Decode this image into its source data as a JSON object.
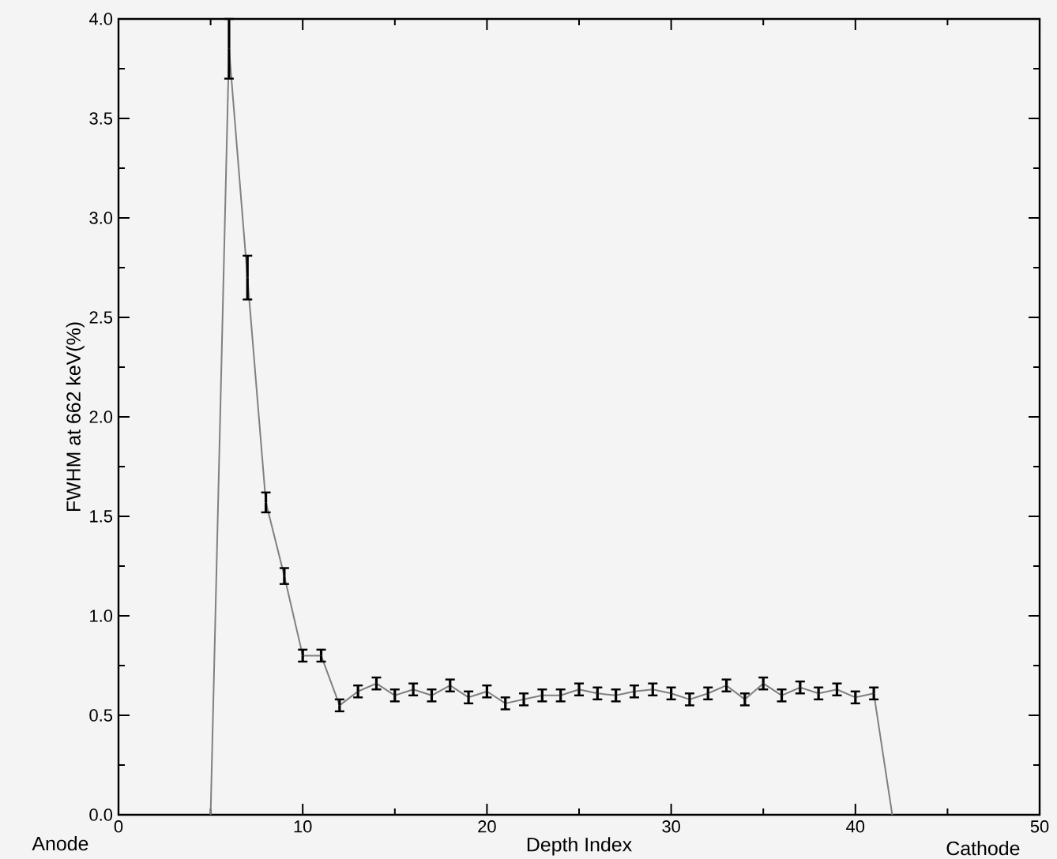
{
  "chart_data": {
    "type": "line",
    "xlabel": "Depth Index",
    "ylabel": "FWHM at 662 keV(%)",
    "x": [
      5,
      6,
      7,
      8,
      9,
      10,
      11,
      12,
      13,
      14,
      15,
      16,
      17,
      18,
      19,
      20,
      21,
      22,
      23,
      24,
      25,
      26,
      27,
      28,
      29,
      30,
      31,
      32,
      33,
      34,
      35,
      36,
      37,
      38,
      39,
      40,
      41,
      42
    ],
    "series": [
      {
        "color": "#808080",
        "values": [
          0,
          3.85,
          2.7,
          1.57,
          1.2,
          0.8,
          0.8,
          0.55,
          0.62,
          0.66,
          0.6,
          0.63,
          0.6,
          0.65,
          0.59,
          0.62,
          0.56,
          0.58,
          0.6,
          0.6,
          0.63,
          0.61,
          0.6,
          0.62,
          0.63,
          0.61,
          0.58,
          0.61,
          0.65,
          0.58,
          0.66,
          0.6,
          0.64,
          0.61,
          0.63,
          0.59,
          0.61,
          0
        ],
        "errors": [
          null,
          0.15,
          0.11,
          0.05,
          0.04,
          0.03,
          0.03,
          0.03,
          0.03,
          0.03,
          0.03,
          0.03,
          0.03,
          0.03,
          0.03,
          0.03,
          0.03,
          0.03,
          0.03,
          0.03,
          0.03,
          0.03,
          0.03,
          0.03,
          0.03,
          0.03,
          0.03,
          0.03,
          0.03,
          0.03,
          0.03,
          0.03,
          0.03,
          0.03,
          0.03,
          0.03,
          0.03,
          null
        ]
      }
    ],
    "xlim": [
      0,
      50
    ],
    "xticks": [
      0,
      10,
      20,
      30,
      40,
      50
    ],
    "ylim": [
      0,
      4
    ],
    "yticks": [
      {
        "value": 0,
        "label": "0.0"
      },
      {
        "value": 0.5,
        "label": "0.5"
      },
      {
        "value": 1,
        "label": "1.0"
      },
      {
        "value": 1.5,
        "label": "1.5"
      },
      {
        "value": 2,
        "label": "2.0"
      },
      {
        "value": 2.5,
        "label": "2.5"
      },
      {
        "value": 3,
        "label": "3.0"
      },
      {
        "value": 3.5,
        "label": "3.5"
      },
      {
        "value": 4,
        "label": "4.0"
      }
    ],
    "marker": "none",
    "line_style": "solid",
    "annotations": [
      "Anode",
      "Cathode"
    ]
  }
}
